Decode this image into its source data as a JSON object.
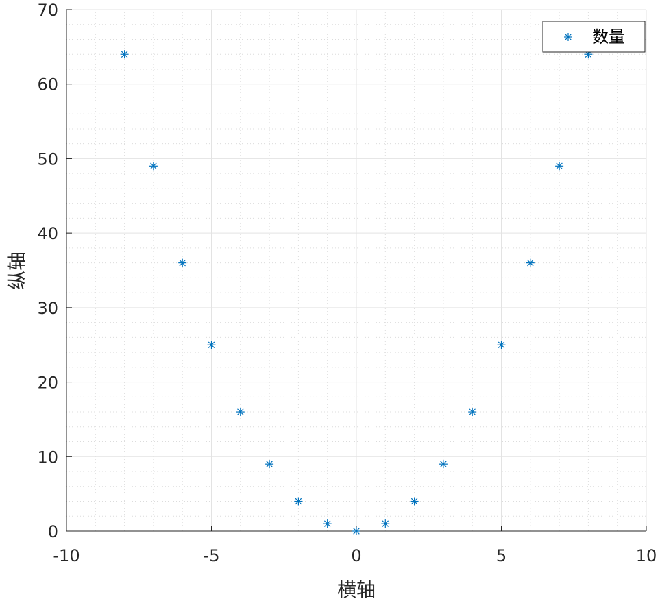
{
  "chart_data": {
    "type": "scatter",
    "title": "",
    "xlabel": "横轴",
    "ylabel": "纵轴",
    "xlim": [
      -10,
      10
    ],
    "ylim": [
      0,
      70
    ],
    "x_ticks": [
      -10,
      -5,
      0,
      5,
      10
    ],
    "y_ticks": [
      0,
      10,
      20,
      30,
      40,
      50,
      60,
      70
    ],
    "x_tick_labels": [
      "-10",
      "-5",
      "0",
      "5",
      "10"
    ],
    "y_tick_labels": [
      "0",
      "10",
      "20",
      "30",
      "40",
      "50",
      "60",
      "70"
    ],
    "grid": true,
    "minor_grid": true,
    "legend_position": "top-right",
    "series": [
      {
        "name": "数量",
        "marker": "asterisk",
        "color": "#0072BD",
        "x": [
          -8,
          -7,
          -6,
          -5,
          -4,
          -3,
          -2,
          -1,
          0,
          1,
          2,
          3,
          4,
          5,
          6,
          7,
          8
        ],
        "y": [
          64,
          49,
          36,
          25,
          16,
          9,
          4,
          1,
          0,
          1,
          4,
          9,
          16,
          25,
          36,
          49,
          64
        ]
      }
    ]
  }
}
